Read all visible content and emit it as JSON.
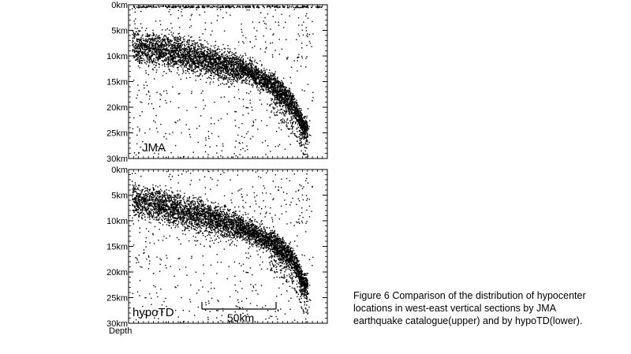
{
  "chart_data": [
    {
      "type": "scatter",
      "panel": "upper",
      "label": "JMA",
      "yticks": [
        "0km",
        "5km",
        "10km",
        "15km",
        "20km",
        "25km",
        "30km"
      ],
      "ylim": [
        0,
        30
      ],
      "y_reversed": true,
      "grid": false,
      "hypocenter_band": [
        {
          "x": 0.0,
          "depth": 8.0
        },
        {
          "x": 0.1,
          "depth": 8.5
        },
        {
          "x": 0.25,
          "depth": 9.5
        },
        {
          "x": 0.45,
          "depth": 11.5
        },
        {
          "x": 0.62,
          "depth": 13.0
        },
        {
          "x": 0.75,
          "depth": 16.0
        },
        {
          "x": 0.85,
          "depth": 20.0
        },
        {
          "x": 0.9,
          "depth": 24.0
        }
      ]
    },
    {
      "type": "scatter",
      "panel": "lower",
      "label": "hypoTD",
      "yticks": [
        "0km",
        "5km",
        "10km",
        "15km",
        "20km",
        "25km",
        "30km"
      ],
      "ylim": [
        0,
        30
      ],
      "y_reversed": true,
      "grid": false,
      "xlabel": "Depth",
      "scale_bar": "50km",
      "hypocenter_band": [
        {
          "x": 0.0,
          "depth": 6.0
        },
        {
          "x": 0.1,
          "depth": 6.5
        },
        {
          "x": 0.25,
          "depth": 8.0
        },
        {
          "x": 0.45,
          "depth": 10.0
        },
        {
          "x": 0.62,
          "depth": 12.0
        },
        {
          "x": 0.75,
          "depth": 14.5
        },
        {
          "x": 0.85,
          "depth": 18.0
        },
        {
          "x": 0.9,
          "depth": 22.5
        }
      ]
    }
  ],
  "caption": [
    "Figure 6 Comparison of the distribution of hypocenter",
    "locations in west-east vertical sections  by JMA",
    "earthquake catalogue(upper) and by hypoTD(lower)."
  ],
  "colors": {
    "points": "#000000",
    "background": "#ffffff",
    "frame": "#000000"
  }
}
